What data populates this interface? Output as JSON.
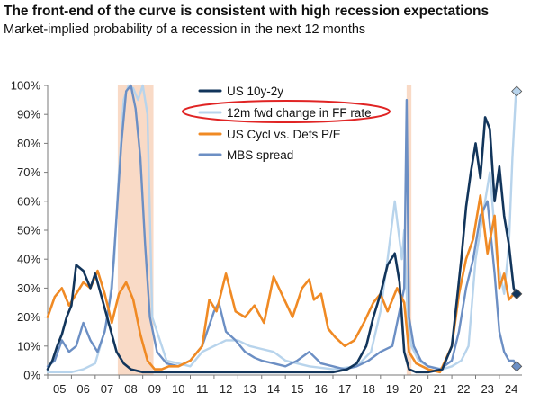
{
  "title": "The front-end of the curve is consistent with high recession expectations",
  "subtitle": "Market-implied probability of a recession in the next 12 months",
  "colors": {
    "us10y2y": "#12355b",
    "ff": "#b8d4ec",
    "cycl": "#f08a24",
    "mbs": "#6c8fc4",
    "shade": "#f9dac6",
    "highlight": "#e02424",
    "axis": "#7a7a7a"
  },
  "chart_data": {
    "type": "line",
    "title": "Market-implied probability of a recession in the next 12 months",
    "xlabel": "",
    "ylabel": "",
    "xlim": [
      2005,
      2024.95
    ],
    "ylim": [
      0,
      100
    ],
    "y_tick_labels": [
      "0%",
      "10%",
      "20%",
      "30%",
      "40%",
      "50%",
      "60%",
      "70%",
      "80%",
      "90%",
      "100%"
    ],
    "y_ticks": [
      0,
      10,
      20,
      30,
      40,
      50,
      60,
      70,
      80,
      90,
      100
    ],
    "x_tick_labels": [
      "05",
      "06",
      "07",
      "08",
      "09",
      "10",
      "11",
      "12",
      "13",
      "14",
      "15",
      "16",
      "17",
      "18",
      "19",
      "20",
      "21",
      "22",
      "23",
      "24"
    ],
    "x_ticks": [
      2005.5,
      2006.5,
      2007.5,
      2008.5,
      2009.5,
      2010.5,
      2011.5,
      2012.5,
      2013.5,
      2014.5,
      2015.5,
      2016.5,
      2017.5,
      2018.5,
      2019.5,
      2020.5,
      2021.5,
      2022.5,
      2023.5,
      2024.5
    ],
    "recession_shading": [
      [
        2007.95,
        2009.45
      ],
      [
        2020.1,
        2020.3
      ]
    ],
    "legend_position": "top-center",
    "highlighted_legend_entry": "12m fwd change in FF rate",
    "series": [
      {
        "name": "US 10y-2y",
        "color_key": "us10y2y",
        "x": [
          2005.0,
          2005.2,
          2005.4,
          2005.6,
          2005.8,
          2006.0,
          2006.2,
          2006.5,
          2006.8,
          2007.0,
          2007.3,
          2007.6,
          2007.9,
          2008.2,
          2008.5,
          2009.0,
          2010.0,
          2011.0,
          2012.0,
          2013.0,
          2014.0,
          2015.0,
          2016.0,
          2017.0,
          2017.6,
          2018.0,
          2018.4,
          2018.7,
          2019.0,
          2019.3,
          2019.6,
          2019.8,
          2020.0,
          2020.2,
          2020.5,
          2021.0,
          2021.6,
          2022.0,
          2022.2,
          2022.4,
          2022.6,
          2022.8,
          2023.0,
          2023.2,
          2023.4,
          2023.6,
          2023.8,
          2024.0,
          2024.2,
          2024.4,
          2024.6,
          2024.7
        ],
        "values": [
          2,
          5,
          10,
          14,
          20,
          24,
          38,
          36,
          30,
          35,
          26,
          17,
          8,
          4,
          2,
          1,
          1,
          1,
          1,
          1,
          1,
          1,
          1,
          1,
          2,
          4,
          10,
          20,
          28,
          38,
          42,
          32,
          8,
          2,
          1,
          1,
          2,
          10,
          25,
          40,
          58,
          70,
          80,
          68,
          89,
          85,
          60,
          72,
          55,
          45,
          30,
          28
        ]
      },
      {
        "name": "12m fwd change in FF rate",
        "color_key": "ff",
        "x": [
          2005.0,
          2005.5,
          2006.0,
          2006.5,
          2007.0,
          2007.5,
          2007.8,
          2008.0,
          2008.2,
          2008.4,
          2008.6,
          2008.8,
          2009.0,
          2009.2,
          2009.4,
          2010.0,
          2011.0,
          2011.5,
          2012.0,
          2012.5,
          2013.0,
          2013.5,
          2014.0,
          2014.5,
          2015.0,
          2016.0,
          2017.0,
          2018.0,
          2018.6,
          2019.0,
          2019.3,
          2019.6,
          2019.9,
          2020.0,
          2020.15,
          2020.3,
          2020.6,
          2021.0,
          2021.6,
          2022.0,
          2022.4,
          2022.7,
          2023.0,
          2023.3,
          2023.6,
          2023.9,
          2024.2,
          2024.4,
          2024.55,
          2024.7
        ],
        "values": [
          1,
          1,
          1,
          2,
          4,
          18,
          40,
          70,
          95,
          100,
          99,
          95,
          100,
          90,
          20,
          5,
          3,
          8,
          10,
          12,
          12,
          10,
          9,
          8,
          5,
          3,
          2,
          3,
          8,
          22,
          40,
          60,
          40,
          50,
          18,
          10,
          5,
          3,
          2,
          3,
          5,
          10,
          40,
          55,
          70,
          40,
          28,
          45,
          75,
          98
        ]
      },
      {
        "name": "US Cycl vs. Defs P/E",
        "color_key": "cycl",
        "x": [
          2005.0,
          2005.3,
          2005.6,
          2005.9,
          2006.2,
          2006.5,
          2006.8,
          2007.1,
          2007.4,
          2007.7,
          2008.0,
          2008.3,
          2008.6,
          2008.9,
          2009.2,
          2009.5,
          2009.8,
          2010.1,
          2010.5,
          2011.0,
          2011.5,
          2011.8,
          2012.1,
          2012.5,
          2012.9,
          2013.3,
          2013.7,
          2014.1,
          2014.5,
          2014.9,
          2015.3,
          2015.7,
          2016.0,
          2016.2,
          2016.5,
          2016.8,
          2017.1,
          2017.5,
          2017.9,
          2018.3,
          2018.7,
          2019.0,
          2019.3,
          2019.7,
          2020.0,
          2020.2,
          2020.5,
          2021.0,
          2021.5,
          2022.0,
          2022.3,
          2022.6,
          2022.9,
          2023.2,
          2023.5,
          2023.8,
          2024.0,
          2024.2,
          2024.4,
          2024.6,
          2024.7
        ],
        "values": [
          20,
          27,
          30,
          24,
          28,
          32,
          30,
          36,
          28,
          18,
          28,
          32,
          26,
          14,
          5,
          2,
          2,
          3,
          3,
          5,
          10,
          26,
          22,
          35,
          22,
          20,
          24,
          18,
          34,
          27,
          20,
          30,
          33,
          26,
          28,
          16,
          13,
          10,
          12,
          18,
          25,
          28,
          22,
          30,
          25,
          8,
          4,
          2,
          1,
          10,
          28,
          40,
          47,
          62,
          42,
          55,
          30,
          35,
          26,
          28,
          28
        ]
      },
      {
        "name": "MBS spread",
        "color_key": "mbs",
        "x": [
          2005.0,
          2005.3,
          2005.6,
          2005.9,
          2006.2,
          2006.5,
          2006.8,
          2007.1,
          2007.4,
          2007.7,
          2007.9,
          2008.1,
          2008.3,
          2008.5,
          2008.7,
          2008.9,
          2009.1,
          2009.3,
          2009.6,
          2010.0,
          2010.5,
          2011.0,
          2011.5,
          2012.0,
          2012.2,
          2012.5,
          2012.9,
          2013.3,
          2013.7,
          2014.0,
          2014.5,
          2015.0,
          2015.5,
          2016.0,
          2016.5,
          2017.0,
          2017.5,
          2018.0,
          2018.5,
          2019.0,
          2019.5,
          2020.0,
          2020.1,
          2020.2,
          2020.4,
          2020.7,
          2021.0,
          2021.5,
          2022.0,
          2022.3,
          2022.6,
          2022.9,
          2023.2,
          2023.5,
          2023.8,
          2024.0,
          2024.2,
          2024.4,
          2024.6,
          2024.7
        ],
        "values": [
          3,
          5,
          12,
          8,
          10,
          18,
          12,
          8,
          15,
          30,
          55,
          80,
          98,
          100,
          92,
          75,
          45,
          20,
          8,
          4,
          3,
          5,
          10,
          22,
          25,
          15,
          12,
          8,
          6,
          5,
          4,
          3,
          5,
          8,
          4,
          3,
          2,
          3,
          5,
          8,
          10,
          30,
          95,
          20,
          10,
          5,
          3,
          2,
          5,
          15,
          30,
          40,
          55,
          60,
          35,
          15,
          8,
          5,
          5,
          3
        ]
      }
    ],
    "endpoint_markers": [
      {
        "series_key": "ff",
        "value": 98
      },
      {
        "series_key": "cycl",
        "value": 28
      },
      {
        "series_key": "us10y2y",
        "value": 28
      },
      {
        "series_key": "mbs",
        "value": 3
      }
    ]
  }
}
